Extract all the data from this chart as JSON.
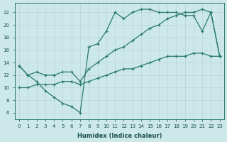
{
  "xlabel": "Humidex (Indice chaleur)",
  "bg_color": "#cce8e8",
  "line_color": "#2a7a6a",
  "grid_color": "#b8d4d4",
  "xlim": [
    -0.5,
    23.5
  ],
  "ylim": [
    5,
    23.5
  ],
  "yticks": [
    6,
    8,
    10,
    12,
    14,
    16,
    18,
    20,
    22
  ],
  "xticks": [
    0,
    1,
    2,
    3,
    4,
    5,
    6,
    7,
    8,
    9,
    10,
    11,
    12,
    13,
    14,
    15,
    16,
    17,
    18,
    19,
    20,
    21,
    22,
    23
  ],
  "line1_x": [
    0,
    1,
    2,
    3,
    4,
    5,
    6,
    7,
    8,
    9,
    10,
    11,
    12,
    13,
    14,
    15,
    16,
    17,
    18,
    19,
    20,
    21,
    22,
    23
  ],
  "line1_y": [
    13.5,
    12.0,
    11.0,
    9.5,
    8.5,
    7.5,
    7.0,
    6.0,
    16.5,
    17.0,
    19.0,
    22.0,
    21.0,
    22.0,
    22.5,
    22.5,
    22.0,
    22.0,
    22.0,
    21.5,
    21.5,
    19.0,
    22.0,
    15.0
  ],
  "line2_x": [
    0,
    1,
    2,
    3,
    4,
    5,
    6,
    7,
    8,
    9,
    10,
    11,
    12,
    13,
    14,
    15,
    16,
    17,
    18,
    19,
    20,
    21,
    22,
    23
  ],
  "line2_y": [
    13.5,
    12.0,
    12.5,
    12.0,
    12.0,
    12.5,
    12.5,
    11.0,
    13.0,
    14.0,
    15.0,
    16.0,
    16.5,
    17.5,
    18.5,
    19.5,
    20.0,
    21.0,
    21.5,
    22.0,
    22.0,
    22.5,
    22.0,
    15.0
  ],
  "line3_x": [
    0,
    1,
    2,
    3,
    4,
    5,
    6,
    7,
    8,
    9,
    10,
    11,
    12,
    13,
    14,
    15,
    16,
    17,
    18,
    19,
    20,
    21,
    22,
    23
  ],
  "line3_y": [
    10.0,
    10.0,
    10.5,
    10.5,
    10.5,
    11.0,
    11.0,
    10.5,
    11.0,
    11.5,
    12.0,
    12.5,
    13.0,
    13.0,
    13.5,
    14.0,
    14.5,
    15.0,
    15.0,
    15.0,
    15.5,
    15.5,
    15.0,
    15.0
  ]
}
